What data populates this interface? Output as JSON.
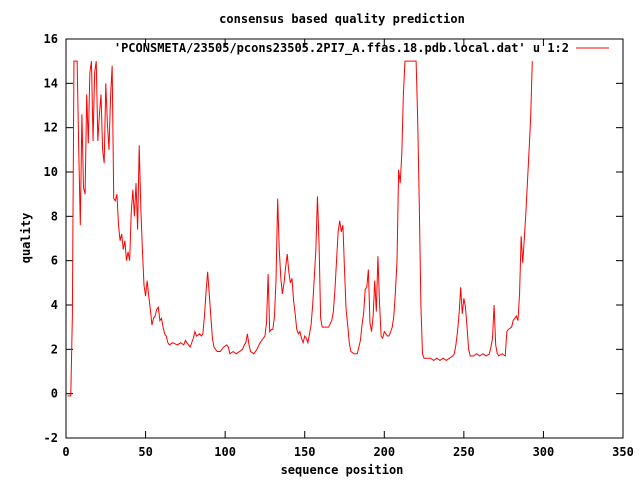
{
  "chart_data": {
    "type": "line",
    "title": "consensus based quality prediction",
    "xlabel": "sequence position",
    "ylabel": "quality",
    "xlim": [
      0,
      350
    ],
    "ylim": [
      -2,
      16
    ],
    "xticks": [
      0,
      50,
      100,
      150,
      200,
      250,
      300,
      350
    ],
    "yticks": [
      -2,
      0,
      2,
      4,
      6,
      8,
      10,
      12,
      14,
      16
    ],
    "grid": false,
    "legend_position": "top-right",
    "series": [
      {
        "name": "'PCONSMETA/23505/pcons23505.2PI7_A.ffas.18.pdb.local.dat' u 1:2",
        "color": "#ff0000",
        "points": [
          [
            1,
            -0.1
          ],
          [
            2,
            -0.1
          ],
          [
            3,
            -0.1
          ],
          [
            4,
            3.5
          ],
          [
            5,
            15
          ],
          [
            6,
            15
          ],
          [
            7,
            15
          ],
          [
            8,
            11
          ],
          [
            9,
            7.6
          ],
          [
            10,
            12.6
          ],
          [
            11,
            9.3
          ],
          [
            12,
            9
          ],
          [
            13,
            13.5
          ],
          [
            14,
            11.3
          ],
          [
            15,
            14.5
          ],
          [
            16,
            15
          ],
          [
            17,
            11.4
          ],
          [
            18,
            14.5
          ],
          [
            19,
            15
          ],
          [
            20,
            11.4
          ],
          [
            21,
            12.6
          ],
          [
            22,
            13.5
          ],
          [
            23,
            11
          ],
          [
            24,
            10.4
          ],
          [
            25,
            14
          ],
          [
            26,
            12.2
          ],
          [
            27,
            11
          ],
          [
            28,
            13.4
          ],
          [
            29,
            14.8
          ],
          [
            30,
            8.8
          ],
          [
            31,
            8.7
          ],
          [
            32,
            9
          ],
          [
            33,
            7.6
          ],
          [
            34,
            6.9
          ],
          [
            35,
            7.2
          ],
          [
            36,
            6.5
          ],
          [
            37,
            6.9
          ],
          [
            38,
            6
          ],
          [
            39,
            6.4
          ],
          [
            40,
            6
          ],
          [
            41,
            8.2
          ],
          [
            42,
            9.2
          ],
          [
            43,
            8
          ],
          [
            44,
            9.5
          ],
          [
            45,
            7.4
          ],
          [
            46,
            11.2
          ],
          [
            47,
            8.4
          ],
          [
            48,
            6.5
          ],
          [
            49,
            4.9
          ],
          [
            50,
            4.4
          ],
          [
            51,
            5.1
          ],
          [
            52,
            4.4
          ],
          [
            53,
            3.8
          ],
          [
            54,
            3.1
          ],
          [
            55,
            3.4
          ],
          [
            56,
            3.5
          ],
          [
            57,
            3.8
          ],
          [
            58,
            3.9
          ],
          [
            59,
            3.3
          ],
          [
            60,
            3.4
          ],
          [
            61,
            3
          ],
          [
            62,
            2.7
          ],
          [
            63,
            2.6
          ],
          [
            64,
            2.3
          ],
          [
            65,
            2.2
          ],
          [
            67,
            2.3
          ],
          [
            70,
            2.2
          ],
          [
            72,
            2.3
          ],
          [
            74,
            2.2
          ],
          [
            75,
            2.4
          ],
          [
            77,
            2.2
          ],
          [
            78,
            2.1
          ],
          [
            80,
            2.5
          ],
          [
            81,
            2.8
          ],
          [
            82,
            2.6
          ],
          [
            84,
            2.7
          ],
          [
            85,
            2.6
          ],
          [
            86,
            2.7
          ],
          [
            87,
            3.5
          ],
          [
            88,
            4.6
          ],
          [
            89,
            5.5
          ],
          [
            90,
            4.5
          ],
          [
            91,
            3.5
          ],
          [
            92,
            2.5
          ],
          [
            93,
            2.1
          ],
          [
            95,
            1.9
          ],
          [
            97,
            1.9
          ],
          [
            99,
            2.1
          ],
          [
            101,
            2.2
          ],
          [
            102,
            2.1
          ],
          [
            103,
            1.8
          ],
          [
            105,
            1.9
          ],
          [
            107,
            1.8
          ],
          [
            109,
            1.9
          ],
          [
            111,
            2
          ],
          [
            112,
            2.2
          ],
          [
            113,
            2.3
          ],
          [
            114,
            2.7
          ],
          [
            115,
            2.2
          ],
          [
            116,
            1.9
          ],
          [
            118,
            1.8
          ],
          [
            120,
            2
          ],
          [
            122,
            2.3
          ],
          [
            124,
            2.5
          ],
          [
            125,
            2.6
          ],
          [
            126,
            3.2
          ],
          [
            127,
            5.4
          ],
          [
            128,
            2.8
          ],
          [
            129,
            2.9
          ],
          [
            130,
            2.9
          ],
          [
            131,
            3.5
          ],
          [
            132,
            5.2
          ],
          [
            133,
            8.8
          ],
          [
            134,
            6.5
          ],
          [
            135,
            5.2
          ],
          [
            136,
            4.5
          ],
          [
            137,
            5
          ],
          [
            138,
            5.7
          ],
          [
            139,
            6.3
          ],
          [
            140,
            5.5
          ],
          [
            141,
            5
          ],
          [
            142,
            5.2
          ],
          [
            143,
            4.2
          ],
          [
            144,
            3.6
          ],
          [
            145,
            2.9
          ],
          [
            146,
            2.7
          ],
          [
            147,
            2.8
          ],
          [
            148,
            2.5
          ],
          [
            149,
            2.3
          ],
          [
            150,
            2.6
          ],
          [
            151,
            2.5
          ],
          [
            152,
            2.3
          ],
          [
            153,
            2.7
          ],
          [
            154,
            3.1
          ],
          [
            155,
            4
          ],
          [
            156,
            5.2
          ],
          [
            157,
            6.5
          ],
          [
            158,
            8.9
          ],
          [
            159,
            6.8
          ],
          [
            160,
            3.4
          ],
          [
            161,
            3
          ],
          [
            163,
            3
          ],
          [
            165,
            3
          ],
          [
            167,
            3.3
          ],
          [
            168,
            3.7
          ],
          [
            169,
            4.7
          ],
          [
            170,
            6
          ],
          [
            171,
            7.3
          ],
          [
            172,
            7.8
          ],
          [
            173,
            7.3
          ],
          [
            174,
            7.6
          ],
          [
            175,
            5.6
          ],
          [
            176,
            3.8
          ],
          [
            177,
            3.1
          ],
          [
            178,
            2.3
          ],
          [
            179,
            1.9
          ],
          [
            181,
            1.8
          ],
          [
            183,
            1.8
          ],
          [
            184,
            2.1
          ],
          [
            185,
            2.4
          ],
          [
            186,
            3.1
          ],
          [
            187,
            3.6
          ],
          [
            188,
            4.7
          ],
          [
            189,
            4.8
          ],
          [
            190,
            5.6
          ],
          [
            191,
            3.2
          ],
          [
            192,
            2.8
          ],
          [
            193,
            3.5
          ],
          [
            194,
            5.1
          ],
          [
            195,
            3.7
          ],
          [
            196,
            6.2
          ],
          [
            197,
            4.1
          ],
          [
            198,
            2.6
          ],
          [
            199,
            2.5
          ],
          [
            200,
            2.8
          ],
          [
            201,
            2.7
          ],
          [
            202,
            2.6
          ],
          [
            203,
            2.6
          ],
          [
            204,
            2.8
          ],
          [
            205,
            3
          ],
          [
            206,
            3.5
          ],
          [
            207,
            4.6
          ],
          [
            208,
            6
          ],
          [
            209,
            10.1
          ],
          [
            210,
            9.5
          ],
          [
            211,
            10.8
          ],
          [
            212,
            13.5
          ],
          [
            213,
            15
          ],
          [
            214,
            15
          ],
          [
            216,
            15
          ],
          [
            218,
            15
          ],
          [
            220,
            15
          ],
          [
            221,
            12.3
          ],
          [
            222,
            8.5
          ],
          [
            223,
            4
          ],
          [
            224,
            1.8
          ],
          [
            225,
            1.6
          ],
          [
            227,
            1.6
          ],
          [
            229,
            1.6
          ],
          [
            231,
            1.5
          ],
          [
            233,
            1.6
          ],
          [
            235,
            1.5
          ],
          [
            237,
            1.6
          ],
          [
            239,
            1.5
          ],
          [
            241,
            1.6
          ],
          [
            243,
            1.7
          ],
          [
            244,
            1.8
          ],
          [
            245,
            2.2
          ],
          [
            246,
            2.8
          ],
          [
            247,
            3.6
          ],
          [
            248,
            4.8
          ],
          [
            249,
            3.6
          ],
          [
            250,
            4.3
          ],
          [
            251,
            3.9
          ],
          [
            252,
            3
          ],
          [
            253,
            2
          ],
          [
            254,
            1.7
          ],
          [
            256,
            1.7
          ],
          [
            258,
            1.8
          ],
          [
            260,
            1.7
          ],
          [
            262,
            1.8
          ],
          [
            264,
            1.7
          ],
          [
            266,
            1.8
          ],
          [
            267,
            2.1
          ],
          [
            268,
            2.5
          ],
          [
            269,
            4
          ],
          [
            270,
            2.2
          ],
          [
            271,
            1.8
          ],
          [
            272,
            1.7
          ],
          [
            274,
            1.8
          ],
          [
            276,
            1.7
          ],
          [
            277,
            2.8
          ],
          [
            278,
            2.9
          ],
          [
            280,
            3
          ],
          [
            281,
            3.3
          ],
          [
            282,
            3.4
          ],
          [
            283,
            3.5
          ],
          [
            284,
            3.3
          ],
          [
            285,
            4.5
          ],
          [
            286,
            7.1
          ],
          [
            287,
            5.9
          ],
          [
            288,
            7
          ],
          [
            289,
            8.2
          ],
          [
            290,
            9.6
          ],
          [
            291,
            11
          ],
          [
            292,
            12.5
          ],
          [
            293,
            15
          ]
        ]
      }
    ]
  }
}
